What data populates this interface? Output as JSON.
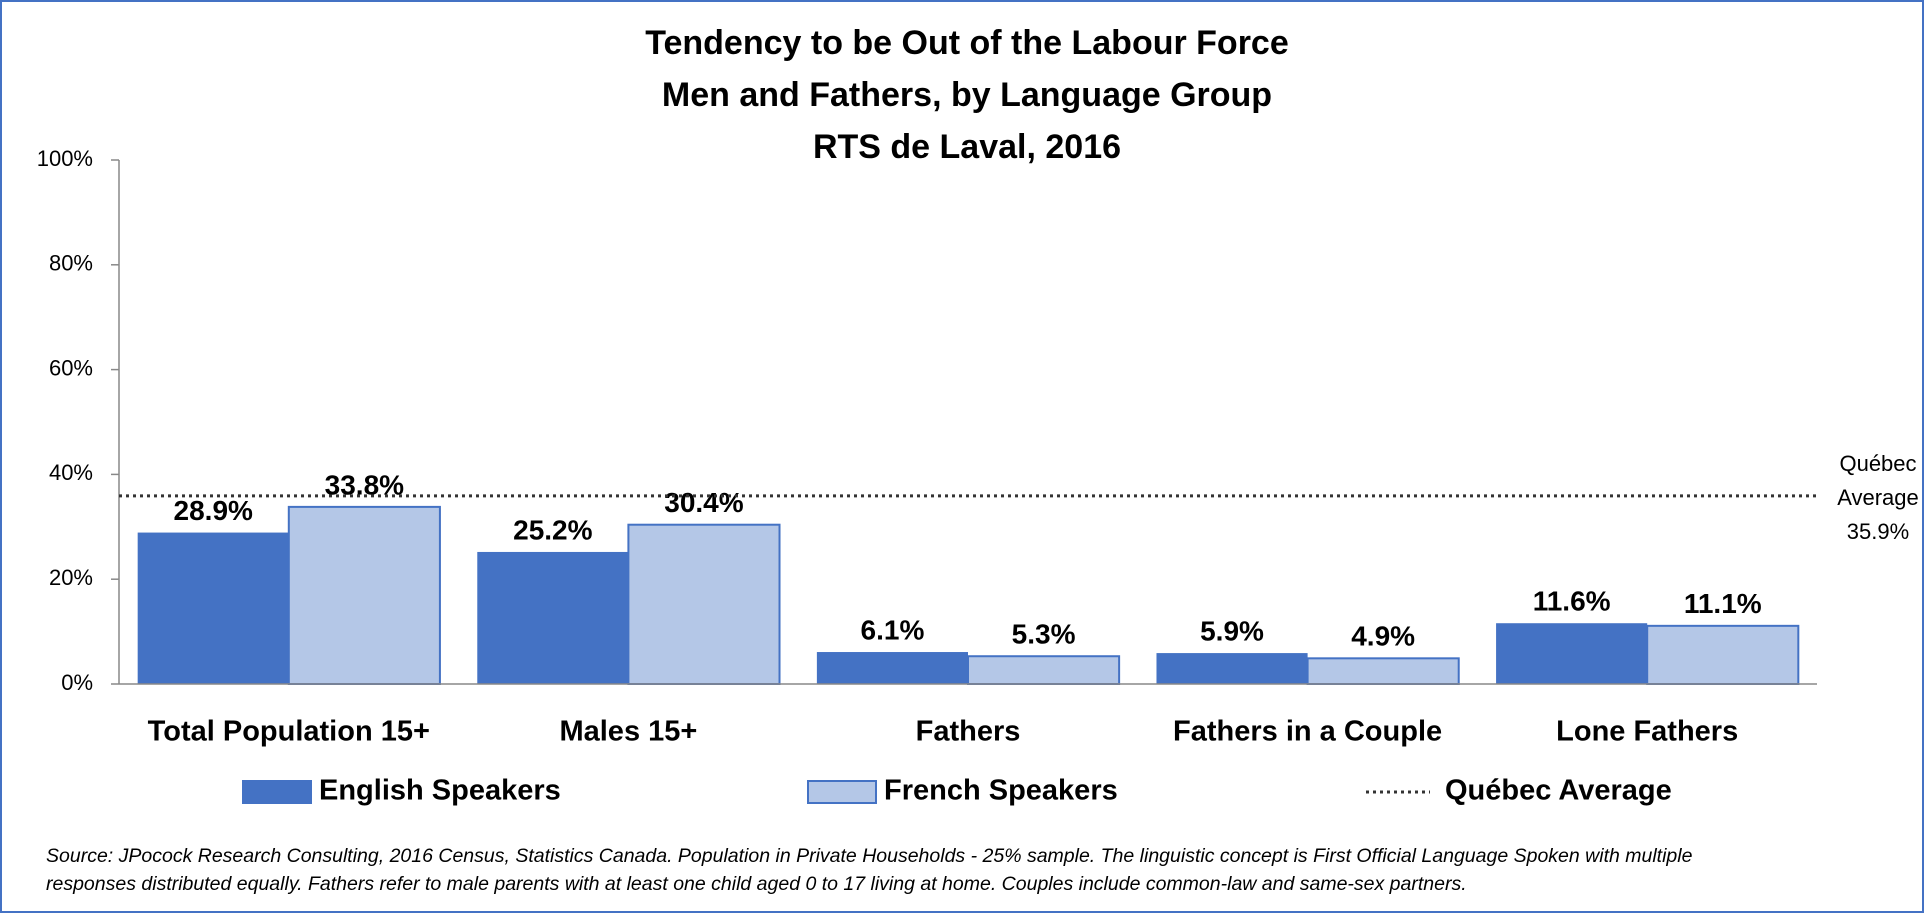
{
  "chart_data": {
    "type": "bar",
    "title_lines": [
      "Tendency to be Out of the Labour Force",
      "Men and Fathers, by Language Group",
      "RTS de Laval, 2016"
    ],
    "categories": [
      "Total Population 15+",
      "Males 15+",
      "Fathers",
      "Fathers in a Couple",
      "Lone Fathers"
    ],
    "series": [
      {
        "name": "English Speakers",
        "color": "#4472c4",
        "values": [
          28.9,
          25.2,
          6.1,
          5.9,
          11.6
        ],
        "value_labels": [
          "28.9%",
          "25.2%",
          "6.1%",
          "5.9%",
          "11.6%"
        ]
      },
      {
        "name": "French Speakers",
        "color": "#b4c7e7",
        "border": "#4472c4",
        "values": [
          33.8,
          30.4,
          5.3,
          4.9,
          11.1
        ],
        "value_labels": [
          "33.8%",
          "30.4%",
          "5.3%",
          "4.9%",
          "11.1%"
        ]
      }
    ],
    "reference_line": {
      "name": "Québec Average",
      "value": 35.9,
      "color": "#333333",
      "label_lines": [
        "Québec",
        "Average",
        "35.9%"
      ]
    },
    "ylim": [
      0,
      100
    ],
    "yticks": [
      {
        "value": 0,
        "label": "0%"
      },
      {
        "value": 20,
        "label": "20%"
      },
      {
        "value": 40,
        "label": "40%"
      },
      {
        "value": 60,
        "label": "60%"
      },
      {
        "value": 80,
        "label": "80%"
      },
      {
        "value": 100,
        "label": "100%"
      }
    ],
    "grid": false,
    "legend": "bottom",
    "source_lines": [
      "Source: JPocock Research Consulting, 2016 Census, Statistics Canada. Population in Private Households - 25% sample. The linguistic concept is First Official Language Spoken with multiple",
      "responses distributed equally. Fathers refer to male parents with at least one child aged 0 to 17 living at home. Couples include common-law and same-sex partners."
    ]
  }
}
